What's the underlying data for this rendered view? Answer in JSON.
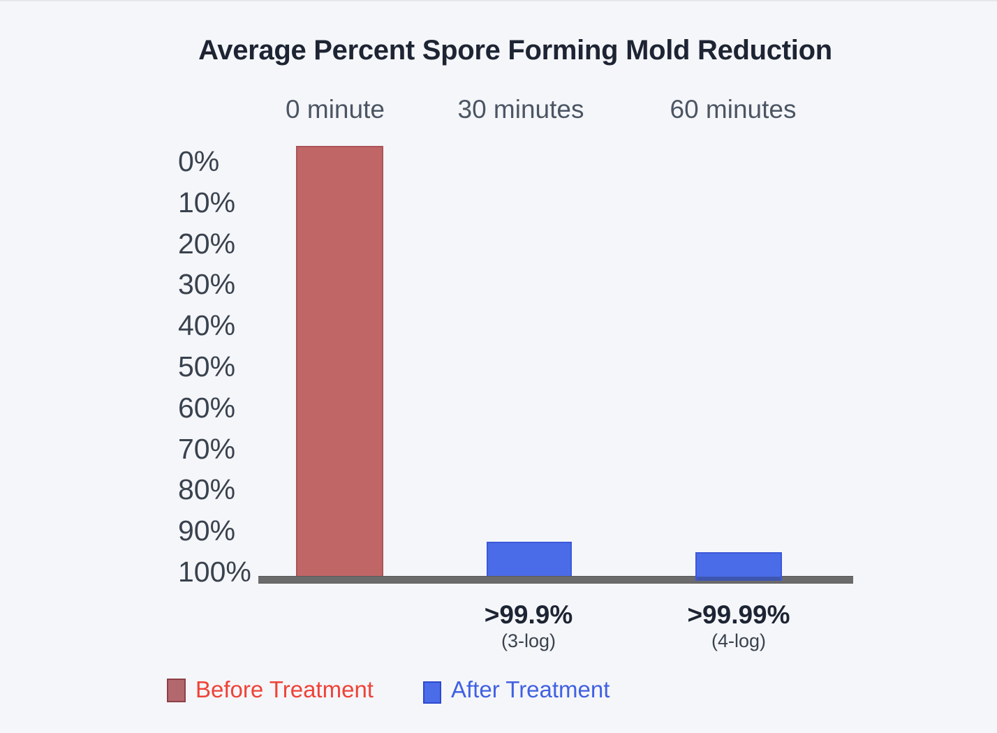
{
  "chart_data": {
    "type": "bar",
    "title": "Average Percent Spore Forming Mold Reduction",
    "categories": [
      "0 minute",
      "30 minutes",
      "60 minutes"
    ],
    "y_axis": {
      "unit": "%",
      "min": 0,
      "max": 100,
      "inverted": true,
      "tick_labels": [
        "0%",
        "10%",
        "20%",
        "30%",
        "40%",
        "50%",
        "60%",
        "70%",
        "80%",
        "90%",
        "100%"
      ]
    },
    "series": [
      {
        "name": "Before Treatment",
        "color": "#c06667",
        "values": [
          0,
          null,
          null
        ],
        "bar_spans_percent": [
          [
            0,
            100
          ],
          null,
          null
        ]
      },
      {
        "name": "After Treatment",
        "color": "#4a6ce8",
        "values": [
          null,
          99.9,
          99.99
        ],
        "bar_spans_percent": [
          null,
          [
            92.5,
            100
          ],
          [
            95,
            100
          ]
        ]
      }
    ],
    "value_labels": [
      {
        "category": "30 minutes",
        "label": ">99.9%",
        "sublabel": "(3-log)"
      },
      {
        "category": "60 minutes",
        "label": ">99.99%",
        "sublabel": "(4-log)"
      }
    ],
    "legend": {
      "position": "bottom-left",
      "entries": [
        "Before Treatment",
        "After Treatment"
      ]
    },
    "grid": false,
    "baseline_color": "#6b6b6b",
    "background": "#f5f6f9",
    "text_colors": {
      "title": "#1d2433",
      "category_headers": "#4b5563",
      "axis_ticks": "#39424e",
      "legend_before": "#ee4338",
      "legend_after": "#4161e2"
    }
  }
}
